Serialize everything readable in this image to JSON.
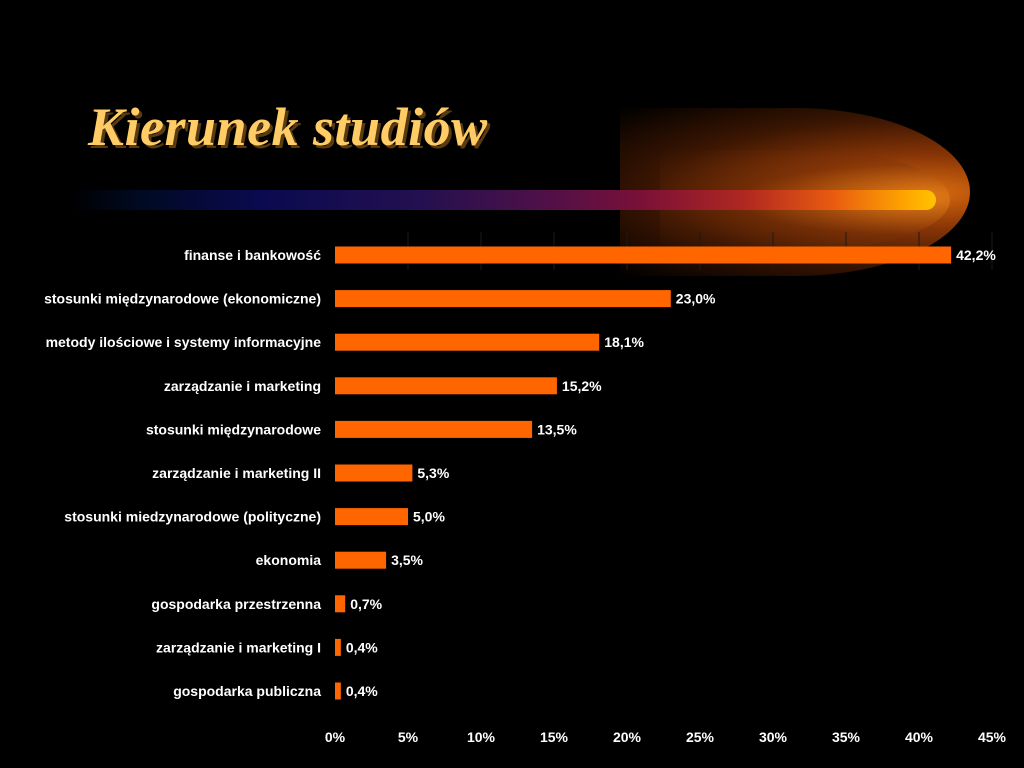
{
  "header": {
    "title": "Kierunek studiów"
  },
  "colors": {
    "bar": "#ff6600",
    "background": "#000000",
    "title": "#ffcc66"
  },
  "chart_data": {
    "type": "bar",
    "orientation": "horizontal",
    "categories": [
      "finanse i bankowość",
      "stosunki międzynarodowe (ekonomiczne)",
      "metody ilościowe i systemy informacyjne",
      "zarządzanie i marketing",
      "stosunki międzynarodowe",
      "zarządzanie i marketing II",
      "stosunki miedzynarodowe (polityczne)",
      "ekonomia",
      "gospodarka przestrzenna",
      "zarządzanie i marketing I",
      "gospodarka publiczna"
    ],
    "values": [
      42.2,
      23.0,
      18.1,
      15.2,
      13.5,
      5.3,
      5.0,
      3.5,
      0.7,
      0.4,
      0.4
    ],
    "data_labels": [
      "42,2%",
      "23,0%",
      "18,1%",
      "15,2%",
      "13,5%",
      "5,3%",
      "5,0%",
      "3,5%",
      "0,7%",
      "0,4%",
      "0,4%"
    ],
    "xlim": [
      0,
      45
    ],
    "x_ticks": [
      0,
      5,
      10,
      15,
      20,
      25,
      30,
      35,
      40,
      45
    ],
    "x_tick_labels": [
      "0%",
      "5%",
      "10%",
      "15%",
      "20%",
      "25%",
      "30%",
      "35%",
      "40%",
      "45%"
    ],
    "grid": true,
    "legend": "none"
  }
}
